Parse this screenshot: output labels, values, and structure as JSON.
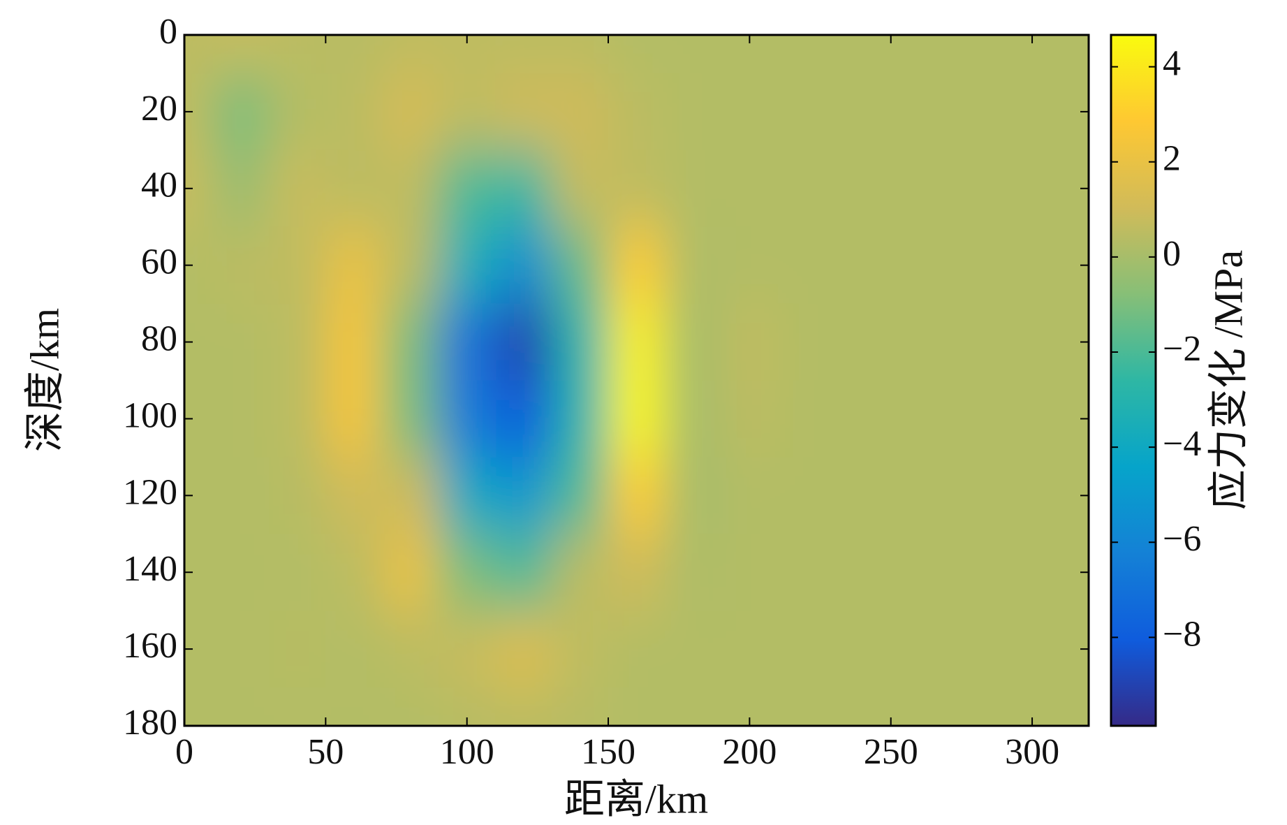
{
  "chart_data": {
    "type": "heatmap",
    "xlabel": "距离/km",
    "ylabel": "深度/km",
    "colorbar_label": "应力变化 /MPa",
    "x": [
      0,
      20,
      40,
      60,
      80,
      100,
      120,
      140,
      160,
      180,
      200,
      220,
      240,
      260,
      280,
      300,
      320
    ],
    "y": [
      0,
      20,
      40,
      60,
      80,
      100,
      120,
      140,
      160,
      180
    ],
    "z": [
      [
        0.5,
        0.8,
        0.5,
        0.4,
        0.6,
        0.6,
        0.5,
        0.5,
        0.3,
        0.3,
        0.3,
        0.3,
        0.3,
        0.3,
        0.3,
        0.3,
        0.3
      ],
      [
        0.6,
        -1.0,
        0.3,
        0.5,
        1.2,
        0.6,
        1.0,
        1.0,
        0.5,
        0.3,
        0.3,
        0.3,
        0.3,
        0.3,
        0.3,
        0.3,
        0.3
      ],
      [
        0.8,
        -0.3,
        0.8,
        0.5,
        0.6,
        -2.0,
        -2.5,
        0.8,
        0.6,
        0.3,
        0.3,
        0.3,
        0.3,
        0.3,
        0.3,
        0.3,
        0.3
      ],
      [
        0.3,
        0.5,
        0.6,
        2.0,
        0.5,
        -3.5,
        -5.5,
        -1.5,
        3.0,
        0.2,
        0.3,
        0.3,
        0.3,
        0.3,
        0.3,
        0.3,
        0.3
      ],
      [
        0.3,
        0.3,
        0.5,
        2.5,
        -1.0,
        -7.0,
        -9.0,
        -3.0,
        4.3,
        0.0,
        0.6,
        0.3,
        0.3,
        0.3,
        0.3,
        0.3,
        0.3
      ],
      [
        0.3,
        0.3,
        0.5,
        2.5,
        -1.0,
        -6.5,
        -8.0,
        -3.0,
        4.5,
        0.0,
        0.5,
        0.3,
        0.3,
        0.3,
        0.3,
        0.3,
        0.3
      ],
      [
        0.3,
        0.3,
        0.4,
        1.0,
        1.0,
        -4.0,
        -5.0,
        -2.0,
        3.0,
        0.0,
        0.3,
        0.3,
        0.3,
        0.3,
        0.3,
        0.3,
        0.3
      ],
      [
        0.3,
        0.3,
        0.3,
        0.5,
        2.0,
        -1.0,
        -2.0,
        0.5,
        1.0,
        0.2,
        0.3,
        0.3,
        0.3,
        0.3,
        0.3,
        0.3,
        0.3
      ],
      [
        0.3,
        0.3,
        0.4,
        0.3,
        0.5,
        0.8,
        1.5,
        0.6,
        0.3,
        0.3,
        0.3,
        0.3,
        0.3,
        0.3,
        0.3,
        0.3,
        0.3
      ],
      [
        0.3,
        0.3,
        0.3,
        0.3,
        0.3,
        0.4,
        0.5,
        0.4,
        0.3,
        0.3,
        0.3,
        0.3,
        0.3,
        0.3,
        0.3,
        0.3,
        0.3
      ]
    ],
    "xlim": [
      0,
      320
    ],
    "ylim": [
      180,
      0
    ],
    "xticks": [
      0,
      50,
      100,
      150,
      200,
      250,
      300
    ],
    "yticks": [
      0,
      20,
      40,
      60,
      80,
      100,
      120,
      140,
      160,
      180
    ],
    "clim": [
      -9.86,
      4.67
    ],
    "cticks": [
      {
        "value": -8,
        "label": "−8"
      },
      {
        "value": -6,
        "label": "−6"
      },
      {
        "value": -4,
        "label": "−4"
      },
      {
        "value": -2,
        "label": "−2"
      },
      0,
      2,
      4
    ],
    "colormap": [
      "#352a87",
      "#0f5cdd",
      "#1481d6",
      "#06a4ca",
      "#2eb7a4",
      "#87bf77",
      "#d1bb59",
      "#fec832",
      "#f9fb0e"
    ]
  }
}
